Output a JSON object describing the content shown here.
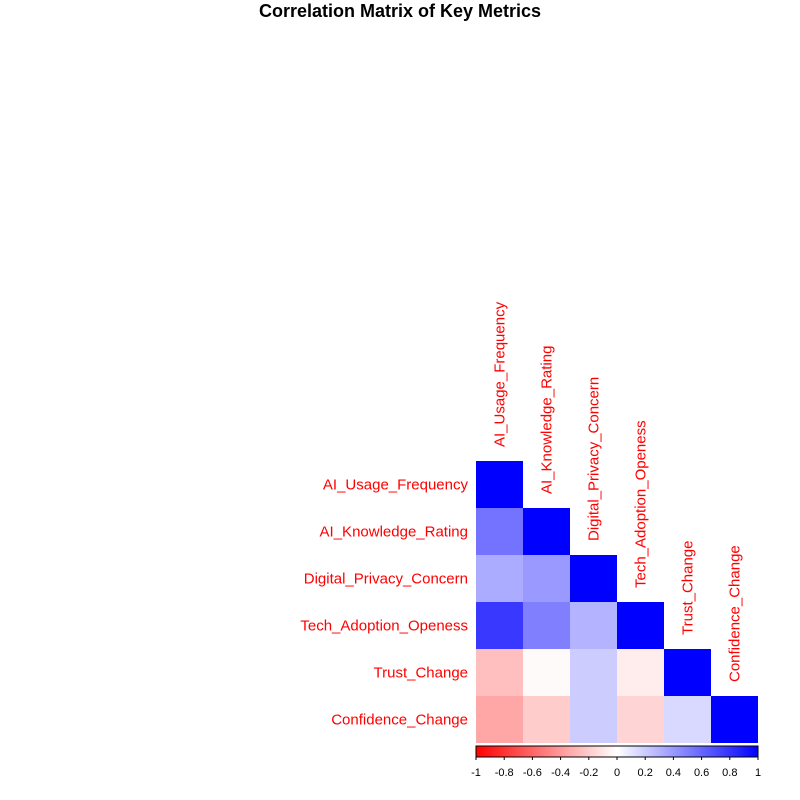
{
  "chart_data": {
    "type": "heatmap",
    "title": "Correlation Matrix of Key Metrics",
    "layout": "lower-triangle",
    "label_color": "#ff0000",
    "variables": [
      "AI_Usage_Frequency",
      "AI_Knowledge_Rating",
      "Digital_Privacy_Concern",
      "Tech_Adoption_Openess",
      "Trust_Change",
      "Confidence_Change"
    ],
    "matrix": [
      [
        1.0,
        0.55,
        0.33,
        0.78,
        -0.25,
        -0.35
      ],
      [
        0.55,
        1.0,
        0.4,
        0.5,
        -0.02,
        -0.2
      ],
      [
        0.33,
        0.4,
        1.0,
        0.3,
        0.2,
        0.2
      ],
      [
        0.78,
        0.5,
        0.3,
        1.0,
        -0.07,
        -0.17
      ],
      [
        -0.25,
        -0.02,
        0.2,
        -0.07,
        1.0,
        0.15
      ],
      [
        -0.35,
        -0.2,
        0.2,
        -0.17,
        0.15,
        1.0
      ]
    ],
    "colorbar": {
      "range": [
        -1,
        1
      ],
      "ticks": [
        "-1",
        "-0.8",
        "-0.6",
        "-0.4",
        "-0.2",
        "0",
        "0.2",
        "0.4",
        "0.6",
        "0.8",
        "1"
      ],
      "colors": {
        "negative": "#ff0000",
        "zero": "#ffffff",
        "positive": "#0000ff"
      }
    }
  }
}
